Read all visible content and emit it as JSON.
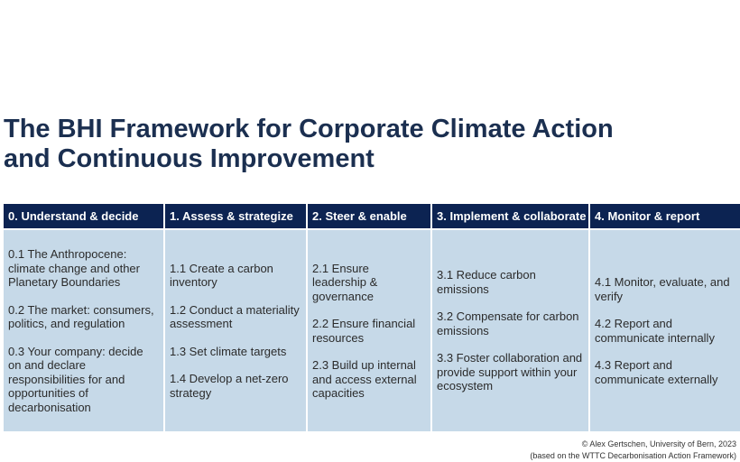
{
  "title": {
    "line1": "The BHI Framework for Corporate Climate Action",
    "line2": "and Continuous Improvement"
  },
  "columns": [
    {
      "header": "0. Understand & decide",
      "items": [
        "0.1 The Anthropocene: climate change and other Planetary Boundaries",
        "0.2 The market: consumers, politics, and regulation",
        "0.3 Your company: decide on and declare responsibilities for and opportunities of decarbonisation"
      ]
    },
    {
      "header": "1. Assess & strategize",
      "items": [
        "1.1 Create a carbon inventory",
        "1.2 Conduct a materiality assessment",
        "1.3 Set climate targets",
        "1.4 Develop a net-zero strategy"
      ]
    },
    {
      "header": "2. Steer & enable",
      "items": [
        "2.1 Ensure leadership & governance",
        "2.2 Ensure financial resources",
        "2.3 Build up internal and access external capacities"
      ]
    },
    {
      "header": "3. Implement & collaborate",
      "items": [
        "3.1 Reduce carbon emissions",
        "3.2 Compensate for carbon emissions",
        "3.3 Foster collaboration and provide support within your ecosystem"
      ]
    },
    {
      "header": "4. Monitor & report",
      "items": [
        "4.1 Monitor, evaluate, and verify",
        "4.2 Report and communicate internally",
        "4.3 Report and communicate externally"
      ]
    }
  ],
  "credit": {
    "line1": "© Alex Gertschen, University of Bern, 2023",
    "line2": "(based on the WTTC Decarbonisation Action Framework)"
  },
  "colors": {
    "header_bg": "#0c2352",
    "body_bg": "#c6d9e8",
    "title": "#1b2f50"
  }
}
